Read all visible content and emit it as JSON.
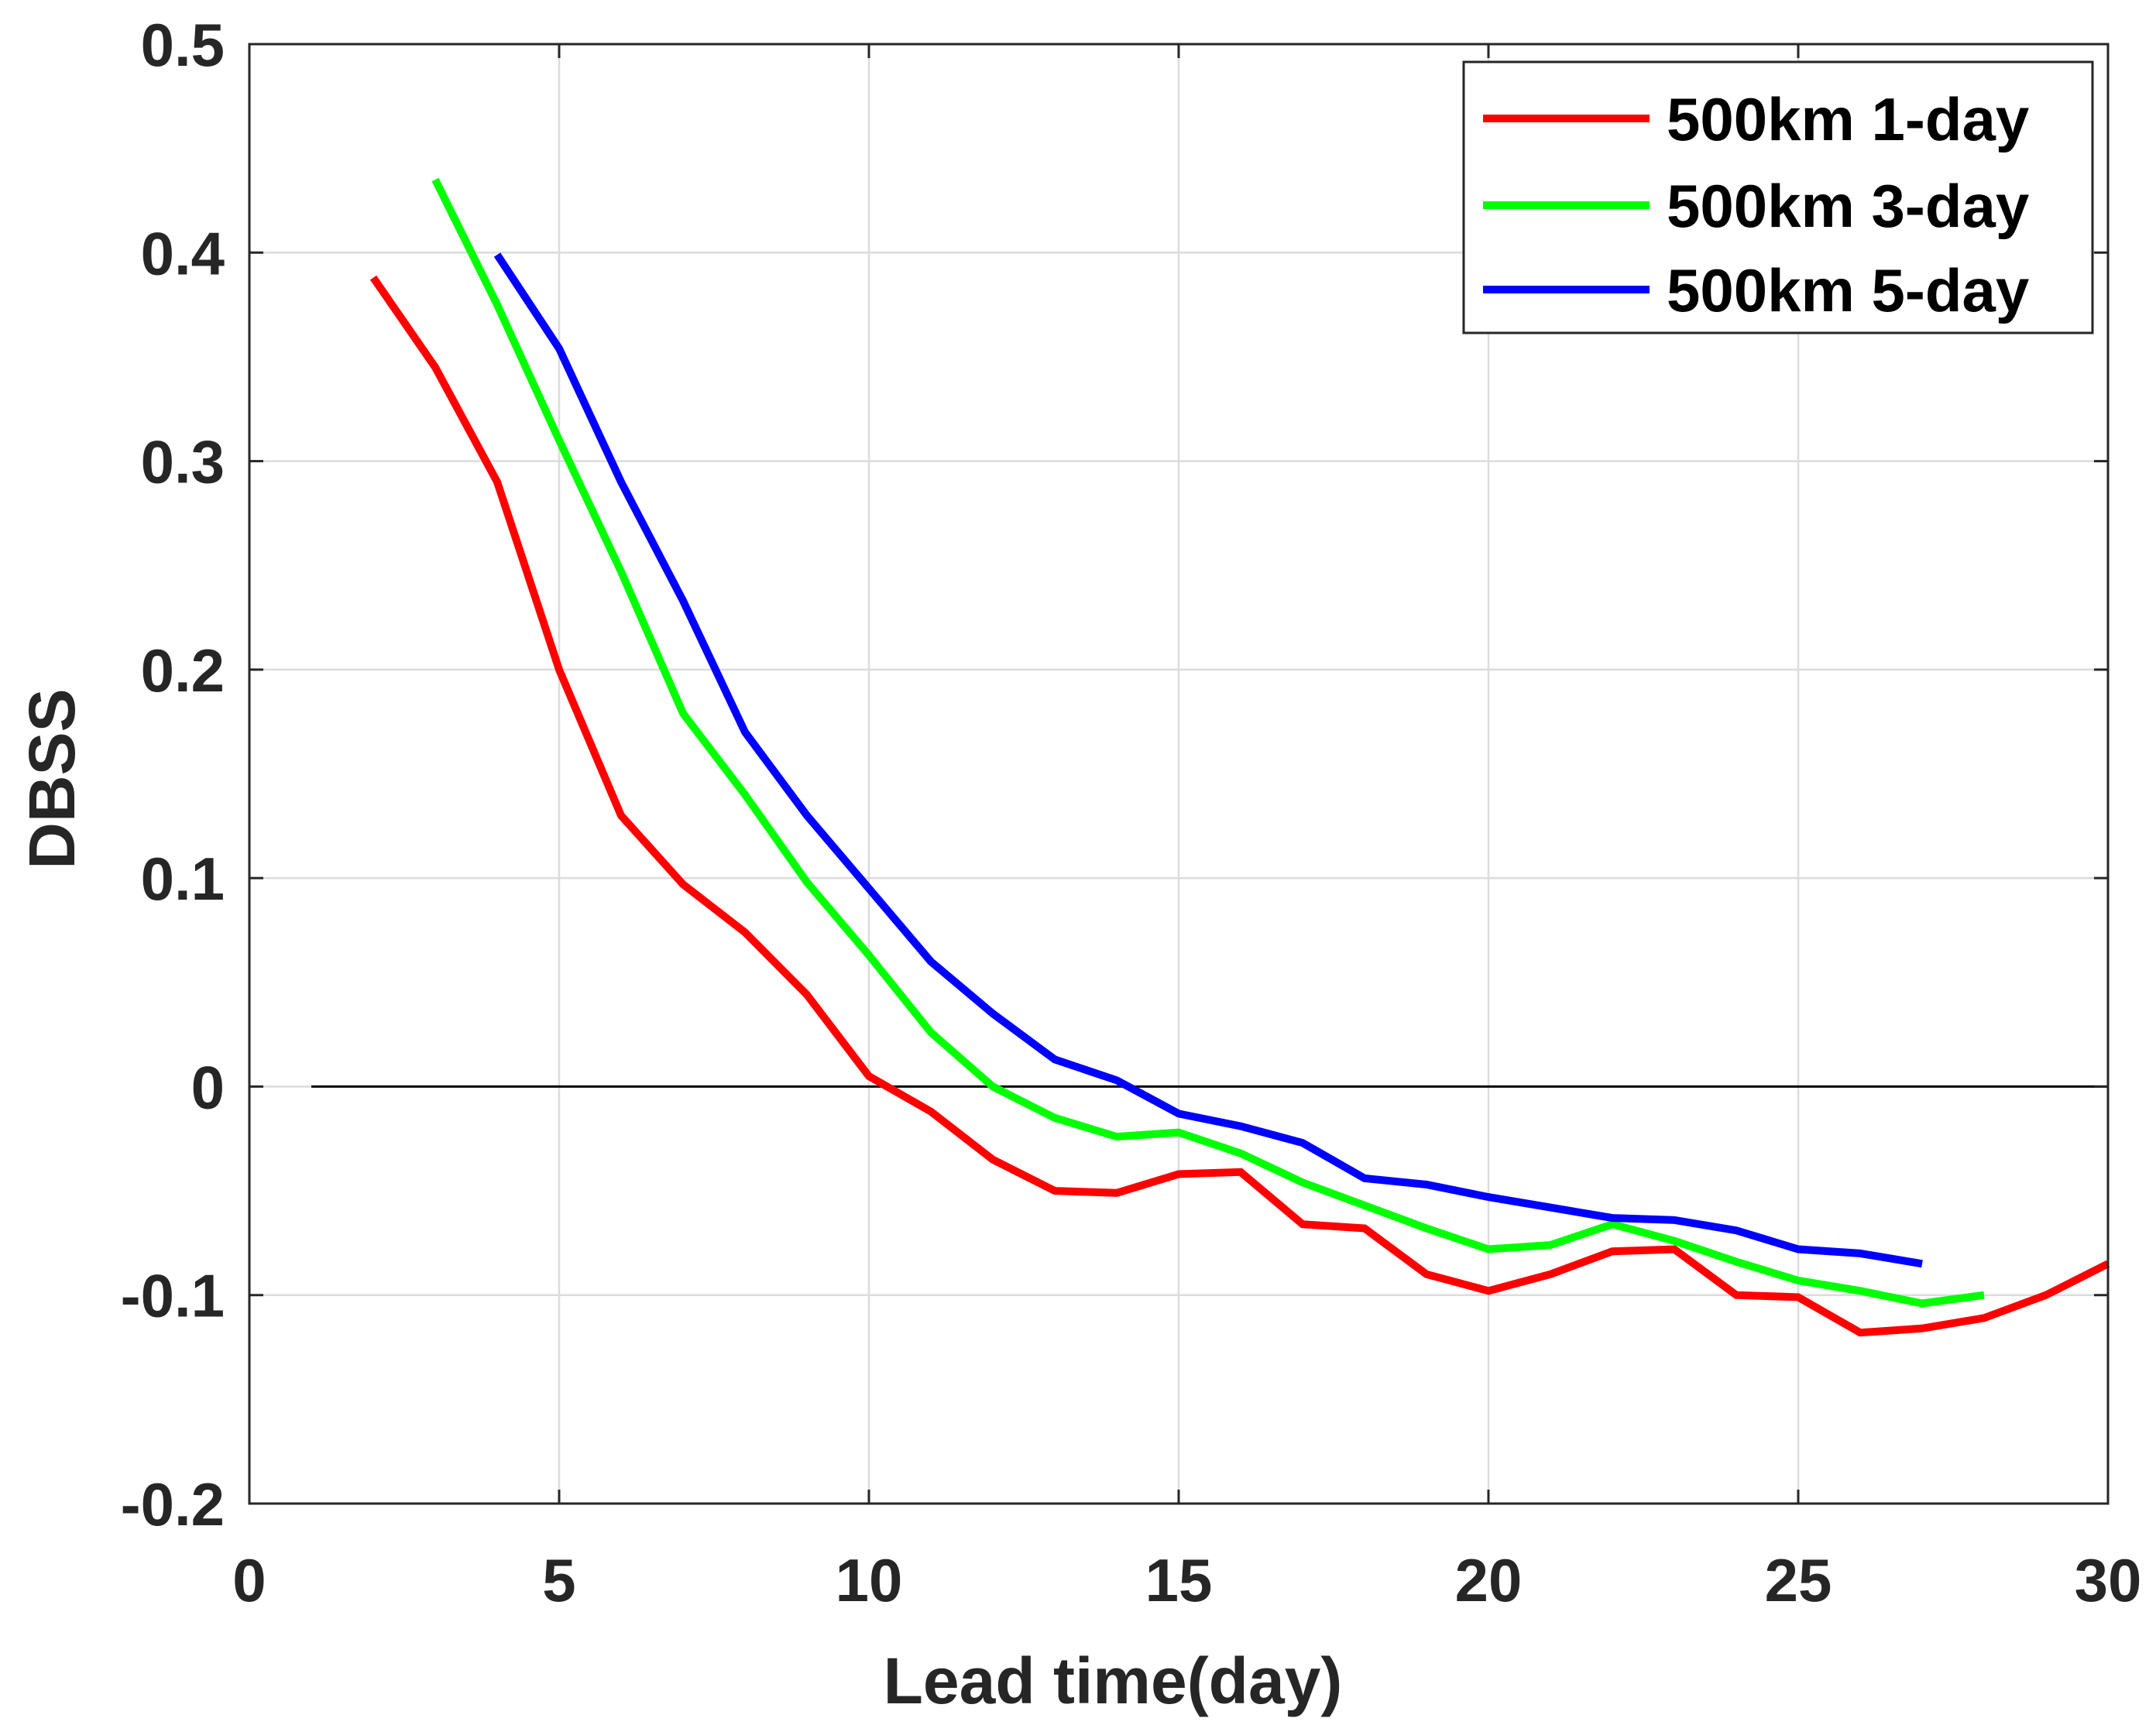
{
  "chart_data": {
    "type": "line",
    "title": "",
    "xlabel": "Lead time(day)",
    "ylabel": "DBSS",
    "xlim": [
      0,
      30
    ],
    "ylim": [
      -0.2,
      0.5
    ],
    "xticks": [
      0,
      5,
      10,
      15,
      20,
      25,
      30
    ],
    "xtick_labels": [
      "0",
      "5",
      "10",
      "15",
      "20",
      "25",
      "30"
    ],
    "yticks": [
      -0.2,
      -0.1,
      0,
      0.1,
      0.2,
      0.3,
      0.4,
      0.5
    ],
    "ytick_labels": [
      "-0.2",
      "-0.1",
      "0",
      "0.1",
      "0.2",
      "0.3",
      "0.4",
      "0.5"
    ],
    "grid": true,
    "legend_position": "top-right",
    "reference_line": {
      "y": 0,
      "x_start": 1,
      "x_end": 30,
      "color": "#000000"
    },
    "series": [
      {
        "name": "500km 1-day",
        "color": "#ff0000",
        "x": [
          2,
          3,
          4,
          5,
          6,
          7,
          8,
          9,
          10,
          11,
          12,
          13,
          14,
          15,
          16,
          17,
          18,
          19,
          20,
          21,
          22,
          23,
          24,
          25,
          26,
          27,
          28,
          29,
          30
        ],
        "y": [
          0.388,
          0.345,
          0.29,
          0.2,
          0.13,
          0.097,
          0.074,
          0.044,
          0.005,
          -0.012,
          -0.035,
          -0.05,
          -0.051,
          -0.042,
          -0.041,
          -0.066,
          -0.068,
          -0.09,
          -0.098,
          -0.09,
          -0.079,
          -0.078,
          -0.1,
          -0.101,
          -0.118,
          -0.116,
          -0.111,
          -0.1,
          -0.085
        ]
      },
      {
        "name": "500km 3-day",
        "color": "#00ff00",
        "x": [
          3,
          4,
          5,
          6,
          7,
          8,
          9,
          10,
          11,
          12,
          13,
          14,
          15,
          16,
          17,
          18,
          19,
          20,
          21,
          22,
          23,
          24,
          25,
          26,
          27,
          28
        ],
        "y": [
          0.435,
          0.375,
          0.31,
          0.247,
          0.179,
          0.14,
          0.098,
          0.063,
          0.026,
          0.0,
          -0.015,
          -0.024,
          -0.022,
          -0.032,
          -0.046,
          -0.057,
          -0.068,
          -0.078,
          -0.076,
          -0.066,
          -0.074,
          -0.084,
          -0.093,
          -0.098,
          -0.104,
          -0.1
        ]
      },
      {
        "name": "500km 5-day",
        "color": "#0000ff",
        "x": [
          4,
          5,
          6,
          7,
          8,
          9,
          10,
          11,
          12,
          13,
          14,
          15,
          16,
          17,
          18,
          19,
          20,
          21,
          22,
          23,
          24,
          25,
          26,
          27
        ],
        "y": [
          0.399,
          0.354,
          0.29,
          0.233,
          0.17,
          0.13,
          0.095,
          0.06,
          0.035,
          0.013,
          0.003,
          -0.013,
          -0.019,
          -0.027,
          -0.044,
          -0.047,
          -0.053,
          -0.058,
          -0.063,
          -0.064,
          -0.069,
          -0.078,
          -0.08,
          -0.085
        ]
      }
    ]
  }
}
